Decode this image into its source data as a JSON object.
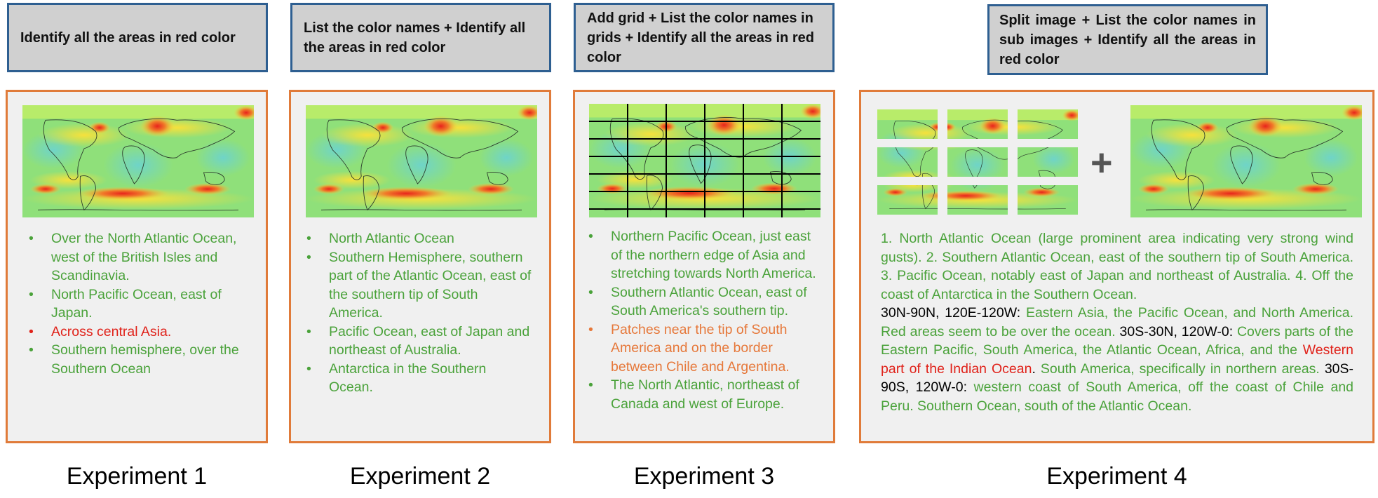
{
  "prompts": [
    "Identify all the areas in red color",
    "List the color names + Identify all the areas in red color",
    "Add grid + List the color names in grids + Identify all the areas in red color",
    "Split image + List the color names in sub images + Identify all the areas in red color"
  ],
  "captions": [
    "Experiment 1",
    "Experiment 2",
    "Experiment 3",
    "Experiment 4"
  ],
  "colors": {
    "green": "#4aa23a",
    "red": "#e0221a",
    "orange": "#e6783a",
    "prompt_border": "#2e5f91",
    "panel_border": "#e07b3a",
    "prompt_bg": "#d0d0d0"
  },
  "exp1": {
    "items": [
      {
        "text": "Over the North Atlantic Ocean, west of the British Isles and Scandinavia.",
        "tone": "g"
      },
      {
        "text": "North Pacific Ocean, east of Japan.",
        "tone": "g"
      },
      {
        "text": "Across central Asia.",
        "tone": "r"
      },
      {
        "text": "Southern hemisphere, over the Southern Ocean",
        "tone": "g"
      }
    ]
  },
  "exp2": {
    "items": [
      {
        "text": "North Atlantic Ocean",
        "tone": "g"
      },
      {
        "text": "Southern Hemisphere, southern part of the Atlantic Ocean, east of the southern tip of South America.",
        "tone": "g"
      },
      {
        "text": "Pacific Ocean, east of Japan and northeast of Australia.",
        "tone": "g"
      },
      {
        "text": "Antarctica in the Southern Ocean.",
        "tone": "g"
      }
    ]
  },
  "exp3": {
    "items": [
      {
        "text": "Northern Pacific Ocean, just east of the northern edge of Asia and stretching towards North America.",
        "tone": "g"
      },
      {
        "text": "Southern Atlantic Ocean, east of South America's southern tip.",
        "tone": "g"
      },
      {
        "text": "Patches near the tip of South America and on the border between Chile and Argentina.",
        "tone": "o"
      },
      {
        "text": "The North Atlantic, northeast of Canada and west of Europe.",
        "tone": "g"
      }
    ]
  },
  "exp4": {
    "plus": "+",
    "segments": [
      {
        "text": "1. North Atlantic Ocean (large prominent area indicating very strong wind gusts). 2. Southern Atlantic Ocean, east of the southern tip of South America. 3. Pacific Ocean, notably east of Japan and northeast of Australia. 4. Off the coast of Antarctica in the Southern Ocean.",
        "tone": "g"
      },
      {
        "text": " ",
        "tone": "g",
        "br": true
      },
      {
        "text": "30N-90N, 120E-120W: ",
        "tone": "k"
      },
      {
        "text": "Eastern Asia, the Pacific Ocean, and North America. Red areas seem to be over the ocean. ",
        "tone": "g"
      },
      {
        "text": "30S-30N, 120W-0: ",
        "tone": "k"
      },
      {
        "text": "Covers parts of the Eastern Pacific, South America, the Atlantic Ocean, Africa, and the ",
        "tone": "g"
      },
      {
        "text": "Western part of the Indian Ocean",
        "tone": "r"
      },
      {
        "text": ". ",
        "tone": "k"
      },
      {
        "text": "South America, specifically in northern areas. ",
        "tone": "g"
      },
      {
        "text": "30S-90S, 120W-0: ",
        "tone": "k"
      },
      {
        "text": "western coast of South America, off the coast of Chile and Peru. Southern Ocean, south of the Atlantic Ocean.",
        "tone": "g"
      }
    ]
  }
}
